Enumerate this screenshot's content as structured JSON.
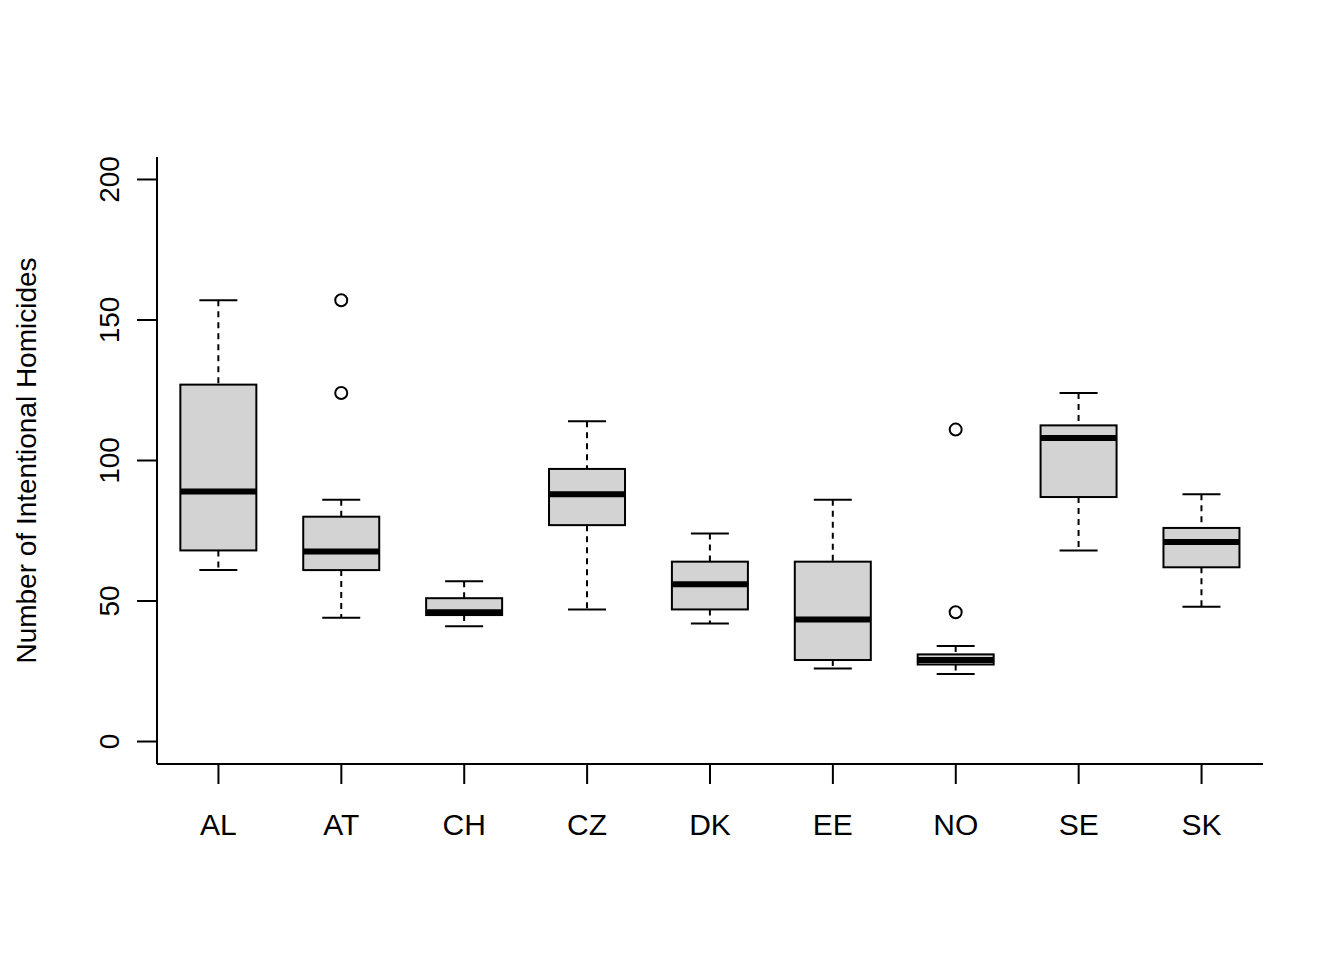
{
  "chart_data": {
    "type": "boxplot",
    "ylabel": "Number of Intentional Homicides",
    "categories": [
      "AL",
      "AT",
      "CH",
      "CZ",
      "DK",
      "EE",
      "NO",
      "SE",
      "SK"
    ],
    "whisker_low": [
      61,
      44,
      41,
      47,
      42,
      26,
      24,
      68,
      48
    ],
    "q1": [
      68,
      61,
      45,
      77,
      47,
      29,
      27.4,
      87,
      62
    ],
    "median": [
      89,
      67.6,
      46,
      88,
      56,
      43.4,
      29,
      108,
      71
    ],
    "q3": [
      127,
      80,
      51,
      97,
      64,
      64,
      31,
      112.5,
      76
    ],
    "whisker_high": [
      157,
      86,
      57,
      114,
      74,
      86,
      34,
      124,
      88
    ],
    "outliers": [
      [],
      [
        157,
        124
      ],
      [],
      [],
      [],
      [],
      [
        111,
        46
      ],
      [],
      []
    ],
    "color": "#d3d3d3",
    "ylim": [
      -8,
      208
    ],
    "yticks": [
      0,
      50,
      100,
      150,
      200
    ]
  }
}
